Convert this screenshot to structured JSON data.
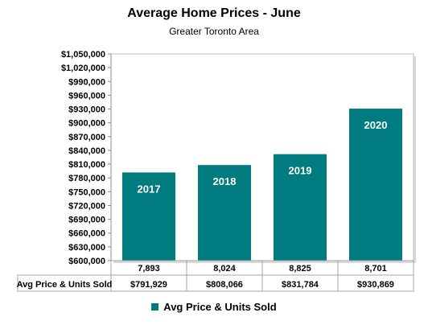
{
  "chart_data": {
    "type": "bar",
    "title": "Average Home Prices - June",
    "subtitle": "Greater Toronto Area",
    "categories": [
      "2017",
      "2018",
      "2019",
      "2020"
    ],
    "series": [
      {
        "name": "Avg Price & Units Sold",
        "values": [
          791929,
          808066,
          831784,
          930869
        ],
        "value_labels": [
          "$791,929",
          "$808,066",
          "$831,784",
          "$930,869"
        ],
        "units_sold": [
          "7,893",
          "8,024",
          "8,825",
          "8,701"
        ],
        "color": "#007c80"
      }
    ],
    "ylim": [
      600000,
      1050000
    ],
    "yticks": [
      "$600,000",
      "$630,000",
      "$660,000",
      "$690,000",
      "$720,000",
      "$750,000",
      "$780,000",
      "$810,000",
      "$840,000",
      "$870,000",
      "$900,000",
      "$930,000",
      "$960,000",
      "$990,000",
      "$1,020,000",
      "$1,050,000"
    ],
    "ytick_values": [
      600000,
      630000,
      660000,
      690000,
      720000,
      750000,
      780000,
      810000,
      840000,
      870000,
      900000,
      930000,
      960000,
      990000,
      1020000,
      1050000
    ],
    "grid": false,
    "legend": "bottom",
    "data_table": true
  }
}
